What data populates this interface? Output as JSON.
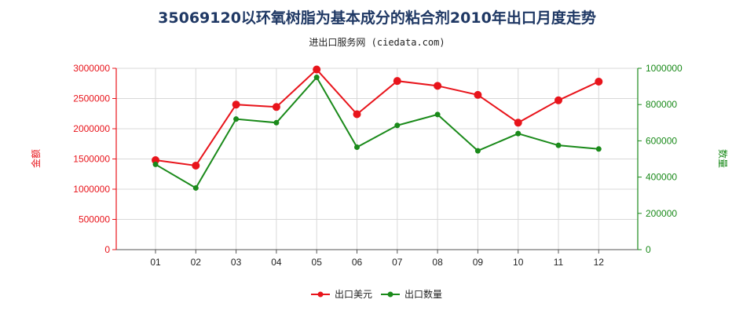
{
  "title": "35069120以环氧树脂为基本成分的粘合剂2010年出口月度走势",
  "subtitle": "进出口服务网 (ciedata.com)",
  "colors": {
    "left_axis": "#e8141b",
    "right_axis": "#1a8a1a",
    "series_amount": "#e8141b",
    "series_quantity": "#1a8a1a",
    "title": "#1f3864"
  },
  "chart_data": {
    "type": "line",
    "categories": [
      "01",
      "02",
      "03",
      "04",
      "05",
      "06",
      "07",
      "08",
      "09",
      "10",
      "11",
      "12"
    ],
    "ylabel_left": "金额",
    "ylabel_right": "数量",
    "ylim_left": [
      0,
      3000000
    ],
    "ylim_right": [
      0,
      1000000
    ],
    "yticks_left": [
      "0",
      "500000",
      "1000000",
      "1500000",
      "2000000",
      "2500000",
      "3000000"
    ],
    "yticks_right": [
      "0",
      "200000",
      "400000",
      "600000",
      "800000",
      "1000000"
    ],
    "grid": true,
    "legend_position": "bottom-center",
    "series": [
      {
        "name": "出口美元",
        "axis": "left",
        "values": [
          1480000,
          1390000,
          2400000,
          2360000,
          2980000,
          2240000,
          2790000,
          2710000,
          2560000,
          2100000,
          2470000,
          2780000
        ]
      },
      {
        "name": "出口数量",
        "axis": "right",
        "values": [
          470000,
          340000,
          720000,
          700000,
          950000,
          565000,
          685000,
          745000,
          545000,
          640000,
          575000,
          555000
        ]
      }
    ]
  }
}
